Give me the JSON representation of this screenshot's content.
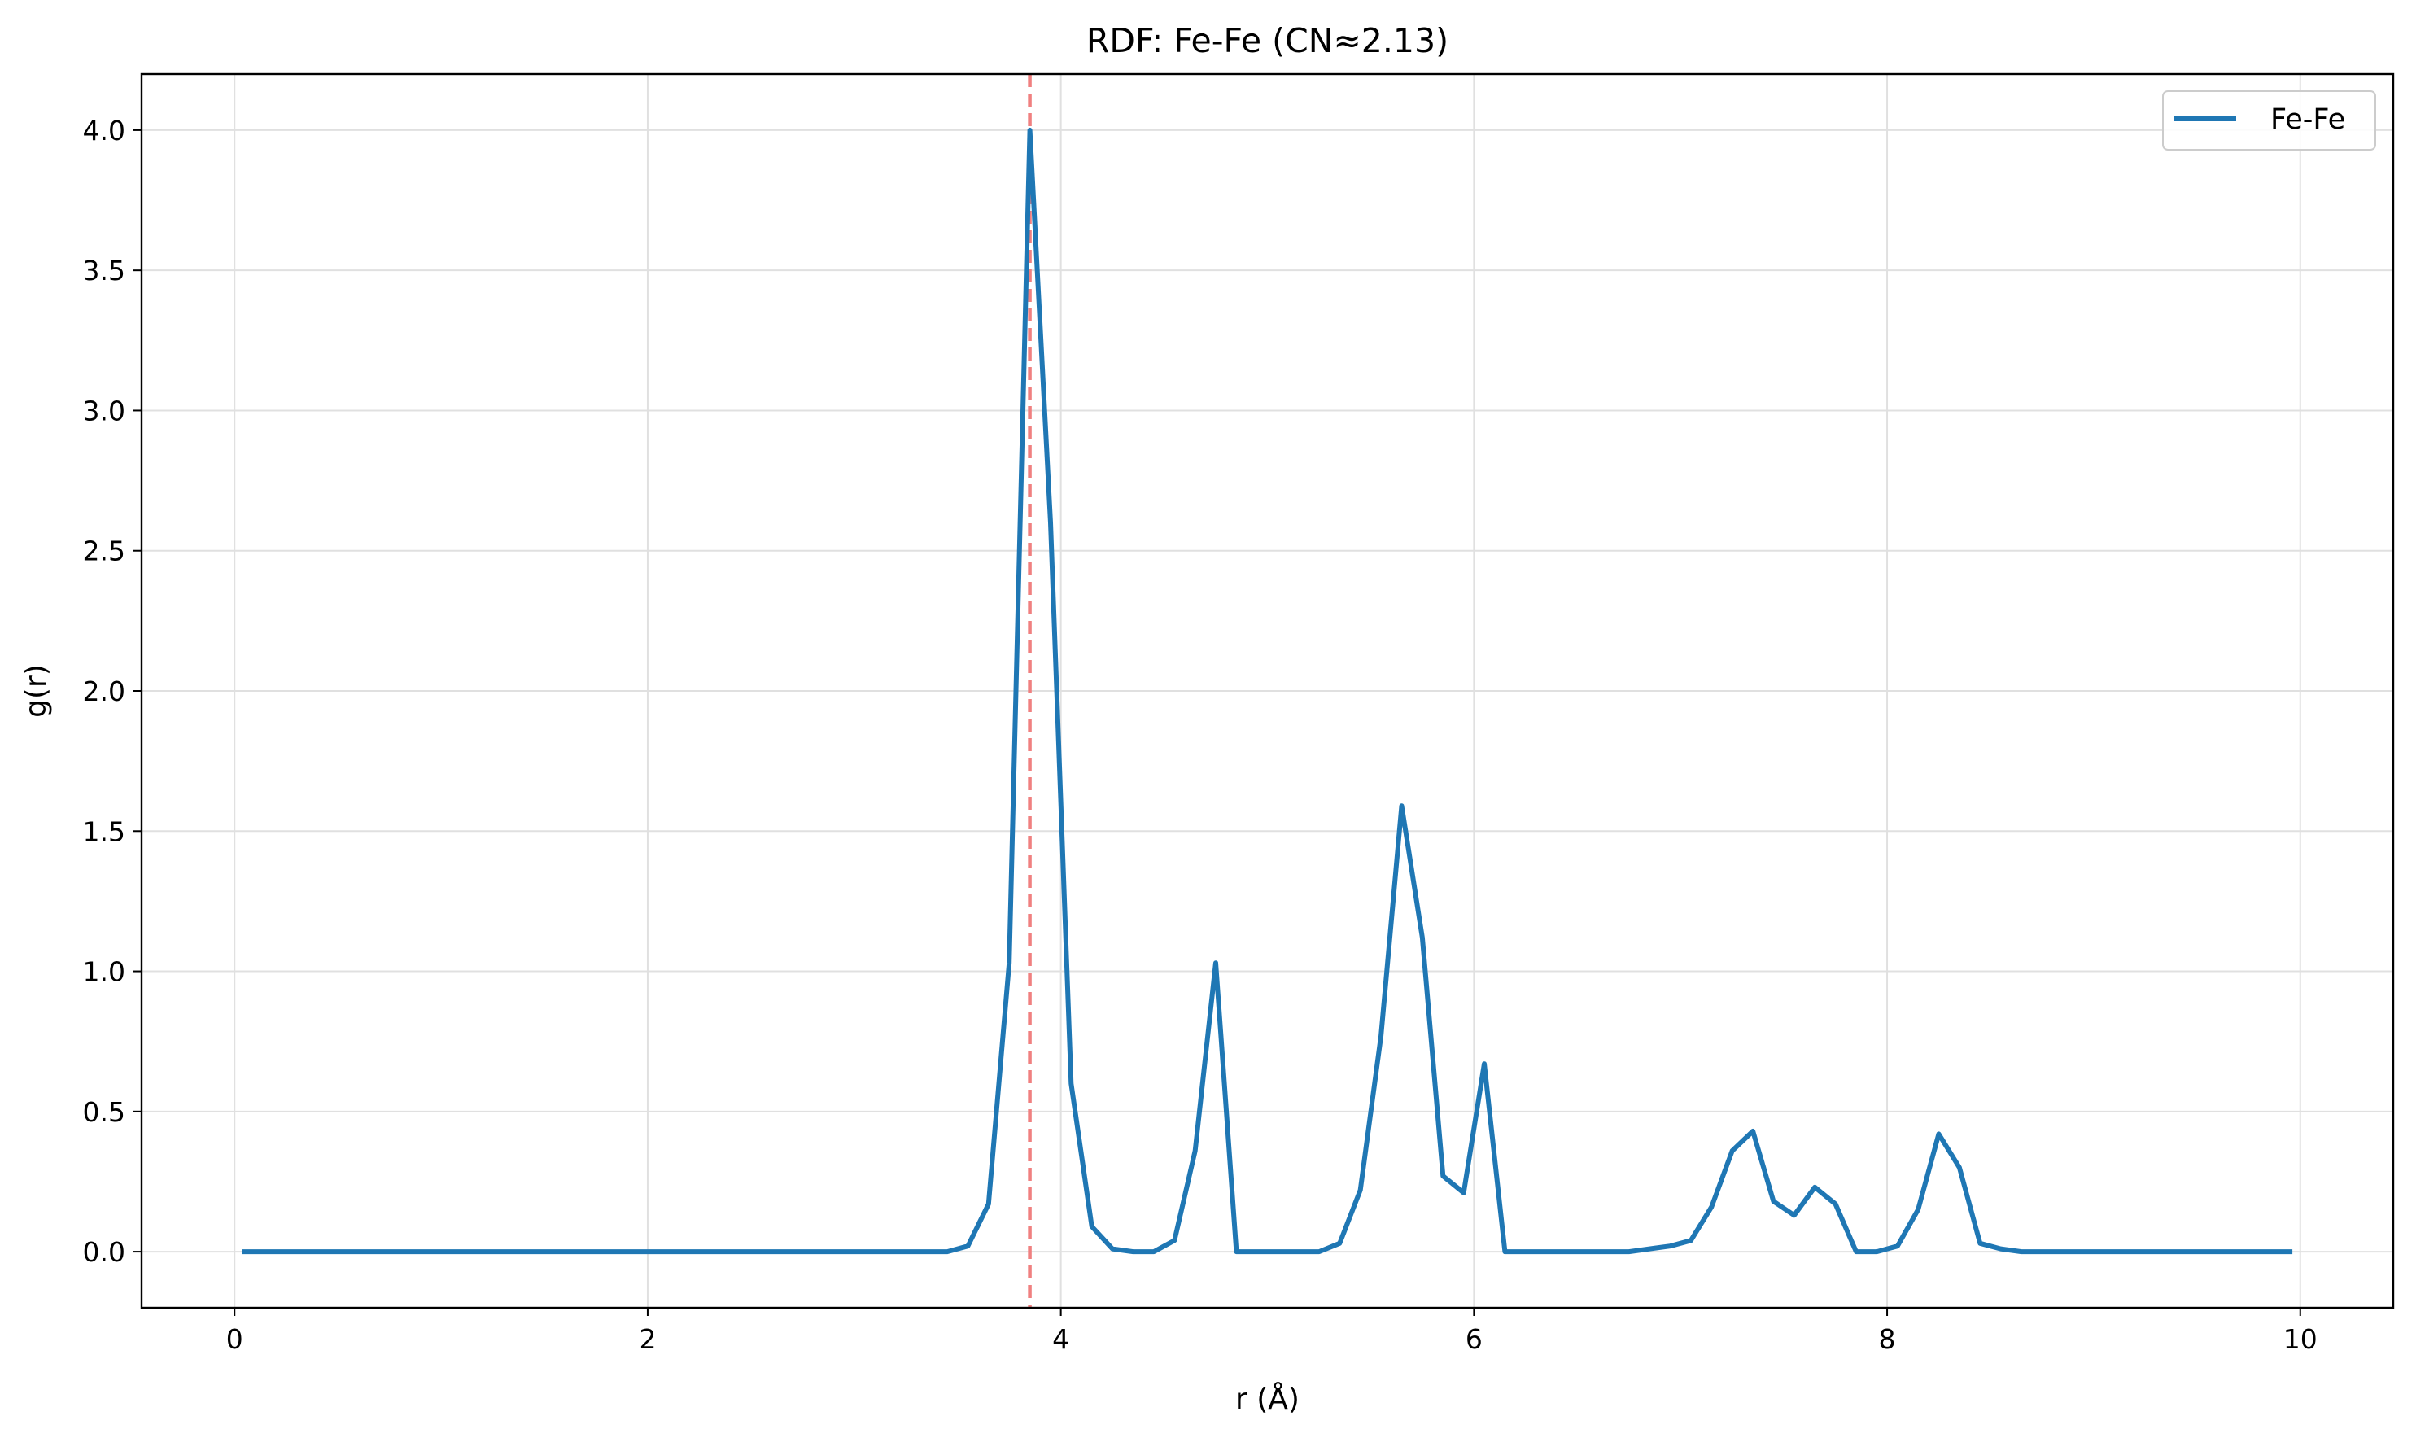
{
  "chart_data": {
    "type": "line",
    "title": "RDF: Fe-Fe (CN≈2.13)",
    "xlabel": "r (Å)",
    "ylabel": "g(r)",
    "xlim": [
      -0.45,
      10.45
    ],
    "ylim": [
      -0.2,
      4.2
    ],
    "xticks": [
      0,
      2,
      4,
      6,
      8,
      10
    ],
    "xtick_labels": [
      "0",
      "2",
      "4",
      "6",
      "8",
      "10"
    ],
    "yticks": [
      0.0,
      0.5,
      1.0,
      1.5,
      2.0,
      2.5,
      3.0,
      3.5,
      4.0
    ],
    "ytick_labels": [
      "0.0",
      "0.5",
      "1.0",
      "1.5",
      "2.0",
      "2.5",
      "3.0",
      "3.5",
      "4.0"
    ],
    "grid": true,
    "legend_position": "top-right",
    "colors": {
      "series": "#1f77b4",
      "marker_line": "#f08080",
      "grid": "#e0e0e0"
    },
    "vertical_line": {
      "x": 3.85,
      "style": "dashed"
    },
    "series": [
      {
        "name": "Fe-Fe",
        "x": [
          0.05,
          3.45,
          3.55,
          3.65,
          3.75,
          3.85,
          3.95,
          4.05,
          4.15,
          4.25,
          4.35,
          4.45,
          4.55,
          4.65,
          4.75,
          4.85,
          4.95,
          5.05,
          5.15,
          5.25,
          5.35,
          5.45,
          5.55,
          5.65,
          5.75,
          5.85,
          5.95,
          6.05,
          6.15,
          6.25,
          6.75,
          6.85,
          6.95,
          7.05,
          7.15,
          7.25,
          7.35,
          7.45,
          7.55,
          7.65,
          7.75,
          7.85,
          7.95,
          8.05,
          8.15,
          8.25,
          8.35,
          8.45,
          8.55,
          8.65,
          9.95
        ],
        "y": [
          0.0,
          0.0,
          0.02,
          0.17,
          1.03,
          4.0,
          2.6,
          0.6,
          0.09,
          0.01,
          0.0,
          0.0,
          0.04,
          0.36,
          1.03,
          0.0,
          0.0,
          0.0,
          0.0,
          0.0,
          0.03,
          0.22,
          0.77,
          1.59,
          1.12,
          0.27,
          0.21,
          0.67,
          0.0,
          0.0,
          0.0,
          0.01,
          0.02,
          0.04,
          0.16,
          0.36,
          0.43,
          0.18,
          0.13,
          0.23,
          0.17,
          0.0,
          0.0,
          0.02,
          0.15,
          0.42,
          0.3,
          0.03,
          0.01,
          0.0,
          0.0
        ]
      }
    ]
  }
}
